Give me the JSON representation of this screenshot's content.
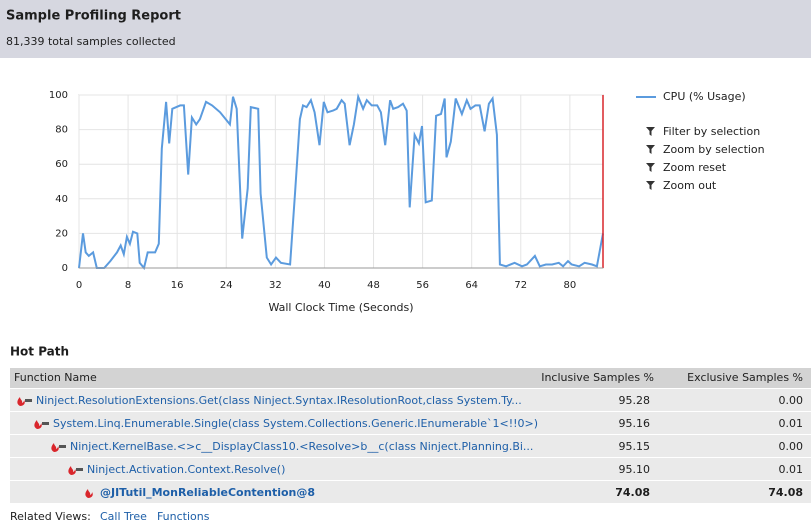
{
  "header": {
    "title": "Sample Profiling Report",
    "subtitle": "81,339 total samples collected"
  },
  "chart_data": {
    "type": "line",
    "xlabel": "Wall Clock Time (Seconds)",
    "x": [
      0,
      0.65,
      1.1,
      1.6,
      2.3,
      2.9,
      4.1,
      5.1,
      6.2,
      6.8,
      7.3,
      7.8,
      8.3,
      8.8,
      9.5,
      9.9,
      10.6,
      11.2,
      12.4,
      13,
      13.5,
      14.2,
      14.7,
      15.2,
      16.5,
      17.1,
      17.8,
      18.4,
      19.1,
      19.7,
      20.7,
      21.7,
      23,
      24.6,
      25.1,
      25.7,
      26.6,
      27.5,
      28,
      29.2,
      29.6,
      30.6,
      31.3,
      32.1,
      32.9,
      34.4,
      35.2,
      36,
      36.5,
      37.1,
      37.8,
      38.4,
      39.2,
      39.9,
      40.5,
      41.4,
      42,
      42.8,
      43.3,
      44.1,
      44.8,
      45.5,
      46.3,
      46.9,
      47.7,
      48.6,
      49.2,
      49.9,
      50.7,
      51.2,
      52,
      52.8,
      53.4,
      53.9,
      54.7,
      55.4,
      55.9,
      56.5,
      57.5,
      58.2,
      59,
      59.6,
      59.9,
      60.6,
      61.4,
      62.4,
      63.2,
      63.8,
      64.6,
      65.3,
      66.1,
      66.8,
      67.4,
      68.1,
      68.6,
      69.6,
      71,
      72.2,
      73,
      74.3,
      75.1,
      76.1,
      77.1,
      78.2,
      78.9,
      79.7,
      80.3,
      81.5,
      82.4,
      83.6,
      84.4,
      85.4
    ],
    "series": [
      {
        "name": "CPU (% Usage)",
        "color": "#5b9bde",
        "values": [
          0,
          20,
          9,
          7,
          9,
          0,
          0,
          4,
          9,
          13,
          8,
          18,
          14,
          21,
          20,
          3,
          0,
          9,
          9,
          14,
          69,
          96,
          72,
          92,
          94,
          94,
          54,
          87,
          83,
          86,
          96,
          94,
          90,
          83,
          99,
          92,
          17,
          46,
          93,
          92,
          43,
          6,
          2,
          6,
          3,
          2,
          43,
          86,
          94,
          93,
          97,
          90,
          71,
          96,
          90,
          91,
          92,
          97,
          95,
          71,
          83,
          99,
          92,
          97,
          94,
          94,
          90,
          71,
          97,
          92,
          93,
          95,
          91,
          35,
          77,
          72,
          82,
          38,
          39,
          88,
          89,
          98,
          64,
          73,
          98,
          89,
          97,
          92,
          94,
          94,
          79,
          95,
          98,
          77,
          2,
          1,
          3,
          1,
          2,
          7,
          1,
          2,
          2,
          3,
          1,
          4,
          2,
          1,
          3,
          2,
          1,
          20
        ]
      }
    ],
    "xlim": [
      0,
      85.4
    ],
    "xticks": [
      0,
      8,
      16,
      24,
      32,
      40,
      48,
      56,
      64,
      72,
      80
    ],
    "ylim": [
      0,
      100
    ],
    "yticks": [
      0,
      20,
      40,
      60,
      80,
      100
    ],
    "grid": true
  },
  "chart_tools": [
    "Filter by selection",
    "Zoom by selection",
    "Zoom reset",
    "Zoom out"
  ],
  "hot_path": {
    "title": "Hot Path",
    "columns": [
      "Function Name",
      "Inclusive Samples %",
      "Exclusive Samples %"
    ],
    "rows": [
      [
        "Ninject.ResolutionExtensions.Get(class Ninject.Syntax.IResolutionRoot,class System.Ty...",
        "95.28",
        "0.00"
      ],
      [
        "System.Linq.Enumerable.Single(class System.Collections.Generic.IEnumerable`1<!!0>)",
        "95.16",
        "0.01"
      ],
      [
        "Ninject.KernelBase.<>c__DisplayClass10.<Resolve>b__c(class Ninject.Planning.Bi...",
        "95.15",
        "0.00"
      ],
      [
        "Ninject.Activation.Context.Resolve()",
        "95.10",
        "0.01"
      ],
      [
        "@JITutil_MonReliableContention@8",
        "74.08",
        "74.08"
      ]
    ]
  },
  "related_views": {
    "label": "Related Views:",
    "links": [
      "Call Tree",
      "Functions"
    ]
  }
}
